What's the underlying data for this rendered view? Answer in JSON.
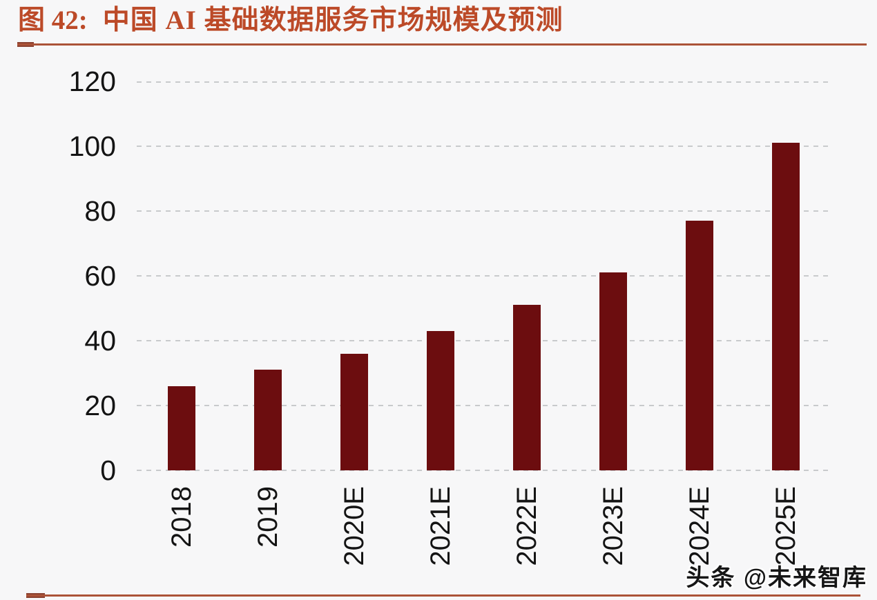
{
  "figure": {
    "label": "图 42:",
    "title": "中国 AI 基础数据服务市场规模及预测"
  },
  "watermark": "头条 @未来智库",
  "colors": {
    "bar": "#6c0d0f",
    "title_text": "#bc4a28",
    "rule_line": "#ab5237",
    "rule_tab": "#8a4130",
    "gridline": "#c8cacc",
    "axis_text": "#141414",
    "background": "#f7f7f8",
    "watermark_text": "#161616"
  },
  "chart_data": {
    "type": "bar",
    "title": "中国 AI 基础数据服务市场规模及预测",
    "categories": [
      "2018",
      "2019",
      "2020E",
      "2021E",
      "2022E",
      "2023E",
      "2024E",
      "2025E"
    ],
    "values": [
      26,
      31,
      36,
      43,
      51,
      61,
      77,
      101
    ],
    "xlabel": "",
    "ylabel": "",
    "ylim": [
      0,
      120
    ],
    "yticks": [
      0,
      20,
      40,
      60,
      80,
      100,
      120
    ],
    "grid": "horizontal-dashed",
    "legend": "none",
    "x_tick_rotation": 90,
    "bar_color": "#6c0d0f"
  }
}
